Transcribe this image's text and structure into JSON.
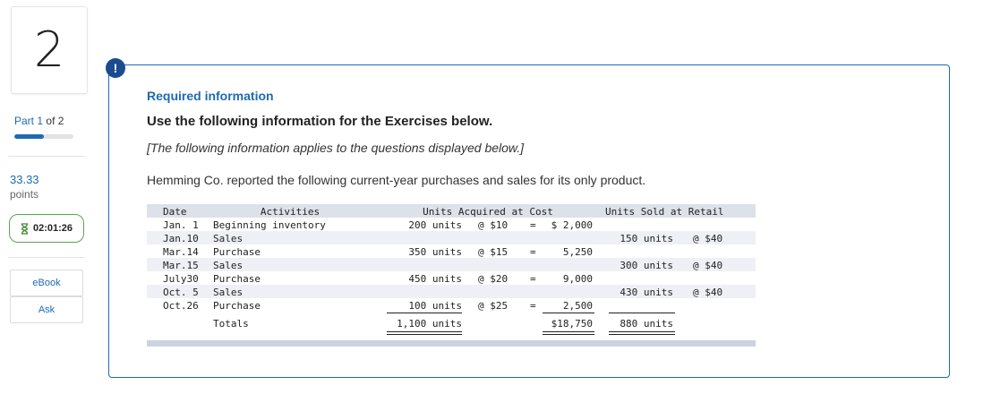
{
  "sidebar": {
    "question_number": "2",
    "part_label": "Part",
    "part_current": "1",
    "part_of": "of 2",
    "part_progress": 0.5,
    "points_value": "33.33",
    "points_label": "points",
    "timer": "02:01:26",
    "ebook_label": "eBook",
    "ask_label": "Ask"
  },
  "alert_icon": "!",
  "info": {
    "title": "Required information",
    "use_text": "Use the following information for the Exercises below.",
    "applies_text": "[The following information applies to the questions displayed below.]",
    "report_text": "Hemming Co. reported the following current-year purchases and sales for its only product."
  },
  "inventory": {
    "headers": {
      "date": "Date",
      "activities": "Activities",
      "acquired": "Units Acquired at Cost",
      "sold": "Units Sold at Retail"
    },
    "rows": [
      {
        "date": "Jan. 1",
        "activity": "Beginning inventory",
        "acq_units": "200 units",
        "acq_at": "@ $10",
        "acq_eq": "=",
        "acq_cost": "$ 2,000",
        "sold_units": "",
        "sold_at": ""
      },
      {
        "date": "Jan.10",
        "activity": "Sales",
        "acq_units": "",
        "acq_at": "",
        "acq_eq": "",
        "acq_cost": "",
        "sold_units": "150 units",
        "sold_at": "@ $40"
      },
      {
        "date": "Mar.14",
        "activity": "Purchase",
        "acq_units": "350 units",
        "acq_at": "@ $15",
        "acq_eq": "=",
        "acq_cost": "5,250",
        "sold_units": "",
        "sold_at": ""
      },
      {
        "date": "Mar.15",
        "activity": "Sales",
        "acq_units": "",
        "acq_at": "",
        "acq_eq": "",
        "acq_cost": "",
        "sold_units": "300 units",
        "sold_at": "@ $40"
      },
      {
        "date": "July30",
        "activity": "Purchase",
        "acq_units": "450 units",
        "acq_at": "@ $20",
        "acq_eq": "=",
        "acq_cost": "9,000",
        "sold_units": "",
        "sold_at": ""
      },
      {
        "date": "Oct. 5",
        "activity": "Sales",
        "acq_units": "",
        "acq_at": "",
        "acq_eq": "",
        "acq_cost": "",
        "sold_units": "430 units",
        "sold_at": "@ $40"
      },
      {
        "date": "Oct.26",
        "activity": "Purchase",
        "acq_units": "100 units",
        "acq_at": "@ $25",
        "acq_eq": "=",
        "acq_cost": "2,500",
        "sold_units": "",
        "sold_at": ""
      }
    ],
    "totals": {
      "label": "Totals",
      "acq_units": "1,100 units",
      "acq_cost": "$18,750",
      "sold_units": "880 units"
    }
  }
}
